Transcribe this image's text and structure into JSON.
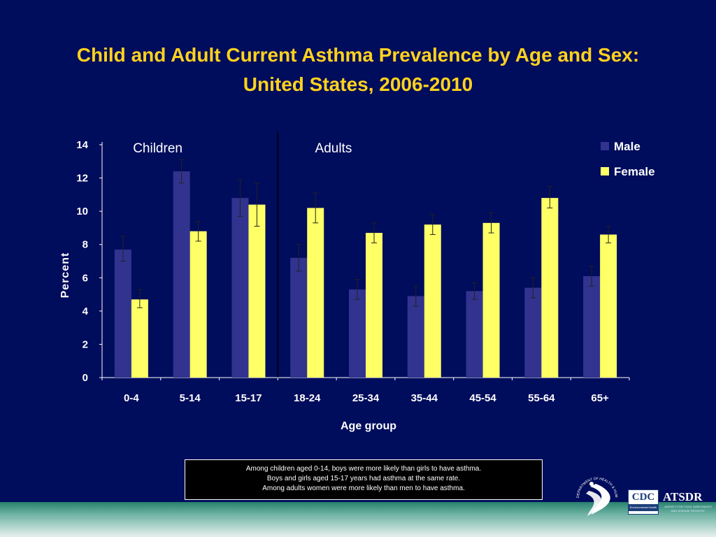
{
  "slide": {
    "title_line1": "Child and Adult Current Asthma Prevalence by Age and Sex:",
    "title_line2": "United States, 2006-2010",
    "note_lines": [
      "Among children aged 0-14, boys were more likely than girls to have asthma.",
      "Boys and girls aged 15-17 years had asthma at the same rate.",
      "Among adults women were more likely than men to have asthma."
    ],
    "logos": {
      "cdc": "CDC",
      "cdc_sub": "Environmental Health",
      "atsdr": "ATSDR",
      "atsdr_sub": "AGENCY FOR TOXIC SUBSTANCES AND DISEASE REGISTRY",
      "hhs_seal": "DEPARTMENT OF HEALTH & HUMAN SERVICES · USA"
    }
  },
  "colors": {
    "background": "#000c5c",
    "title": "#ffd21e",
    "male": "#31338f",
    "female": "#ffff66",
    "text": "#ffffff"
  },
  "chart_data": {
    "type": "bar",
    "title": "Child and Adult Current Asthma Prevalence by Age and Sex: United States, 2006-2010",
    "xlabel": "Age group",
    "ylabel": "Percent",
    "ylim": [
      0,
      14
    ],
    "yticks": [
      0,
      2,
      4,
      6,
      8,
      10,
      12,
      14
    ],
    "categories": [
      "0-4",
      "5-14",
      "15-17",
      "18-24",
      "25-34",
      "35-44",
      "45-54",
      "55-64",
      "65+"
    ],
    "series": [
      {
        "name": "Male",
        "values": [
          7.7,
          12.4,
          10.8,
          7.2,
          5.3,
          4.9,
          5.2,
          5.4,
          6.1
        ],
        "error_low": [
          7.0,
          11.7,
          9.7,
          6.4,
          4.7,
          4.3,
          4.7,
          4.8,
          5.5
        ],
        "error_high": [
          8.5,
          13.1,
          11.9,
          8.0,
          5.9,
          5.5,
          5.7,
          6.0,
          6.7
        ]
      },
      {
        "name": "Female",
        "values": [
          4.7,
          8.8,
          10.4,
          10.2,
          8.7,
          9.2,
          9.3,
          10.8,
          8.6
        ],
        "error_low": [
          4.2,
          8.2,
          9.1,
          9.3,
          8.1,
          8.6,
          8.7,
          10.2,
          8.1
        ],
        "error_high": [
          5.3,
          9.4,
          11.7,
          11.1,
          9.3,
          9.8,
          9.9,
          11.5,
          9.1
        ]
      }
    ],
    "group_labels": [
      {
        "label": "Children",
        "from_index": 0
      },
      {
        "label": "Adults",
        "from_index": 3
      }
    ],
    "divider_after_index": 2,
    "legend_position": "top-right",
    "grid": false,
    "error_bars": true
  }
}
